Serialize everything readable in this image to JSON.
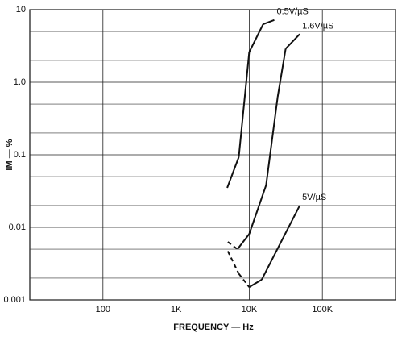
{
  "chart_data": {
    "type": "line",
    "x_label": "FREQUENCY — Hz",
    "y_label": "IM — %",
    "x_log": true,
    "y_log": true,
    "grid": true,
    "xlim": [
      10,
      1000000
    ],
    "xticks": [
      {
        "value": 100,
        "label": "100"
      },
      {
        "value": 1000,
        "label": "1K"
      },
      {
        "value": 10000,
        "label": "10K"
      },
      {
        "value": 100000,
        "label": "100K"
      }
    ],
    "ylim": [
      0.001,
      10
    ],
    "yticks": [
      0.001,
      0.01,
      0.1,
      {
        "value": 1,
        "label": "1.0"
      },
      10
    ],
    "y_minor_ticks": [
      0.002,
      0.005,
      0.02,
      0.05,
      0.2,
      0.5,
      2,
      5
    ],
    "color": "#111111",
    "series": [
      {
        "name": "0.5V/µS",
        "x": [
          5000,
          7200,
          10000,
          15500,
          22000
        ],
        "values": [
          0.035,
          0.093,
          2.6,
          6.3,
          7.2
        ],
        "line_style": [
          "solid",
          "solid",
          "solid",
          "solid"
        ]
      },
      {
        "name": "1.6V/µS",
        "x": [
          5100,
          6900,
          10000,
          17000,
          24500,
          31500,
          49000
        ],
        "values": [
          0.0063,
          0.005,
          0.0081,
          0.038,
          0.63,
          2.9,
          4.6
        ],
        "line_style": [
          "dashed",
          "solid",
          "solid",
          "solid",
          "solid",
          "solid"
        ]
      },
      {
        "name": "5V/µS",
        "x": [
          5100,
          7200,
          10000,
          14800,
          49000
        ],
        "values": [
          0.0047,
          0.0023,
          0.0015,
          0.0019,
          0.02
        ],
        "line_style": [
          "dashed",
          "dashed",
          "solid",
          "solid"
        ]
      }
    ]
  }
}
